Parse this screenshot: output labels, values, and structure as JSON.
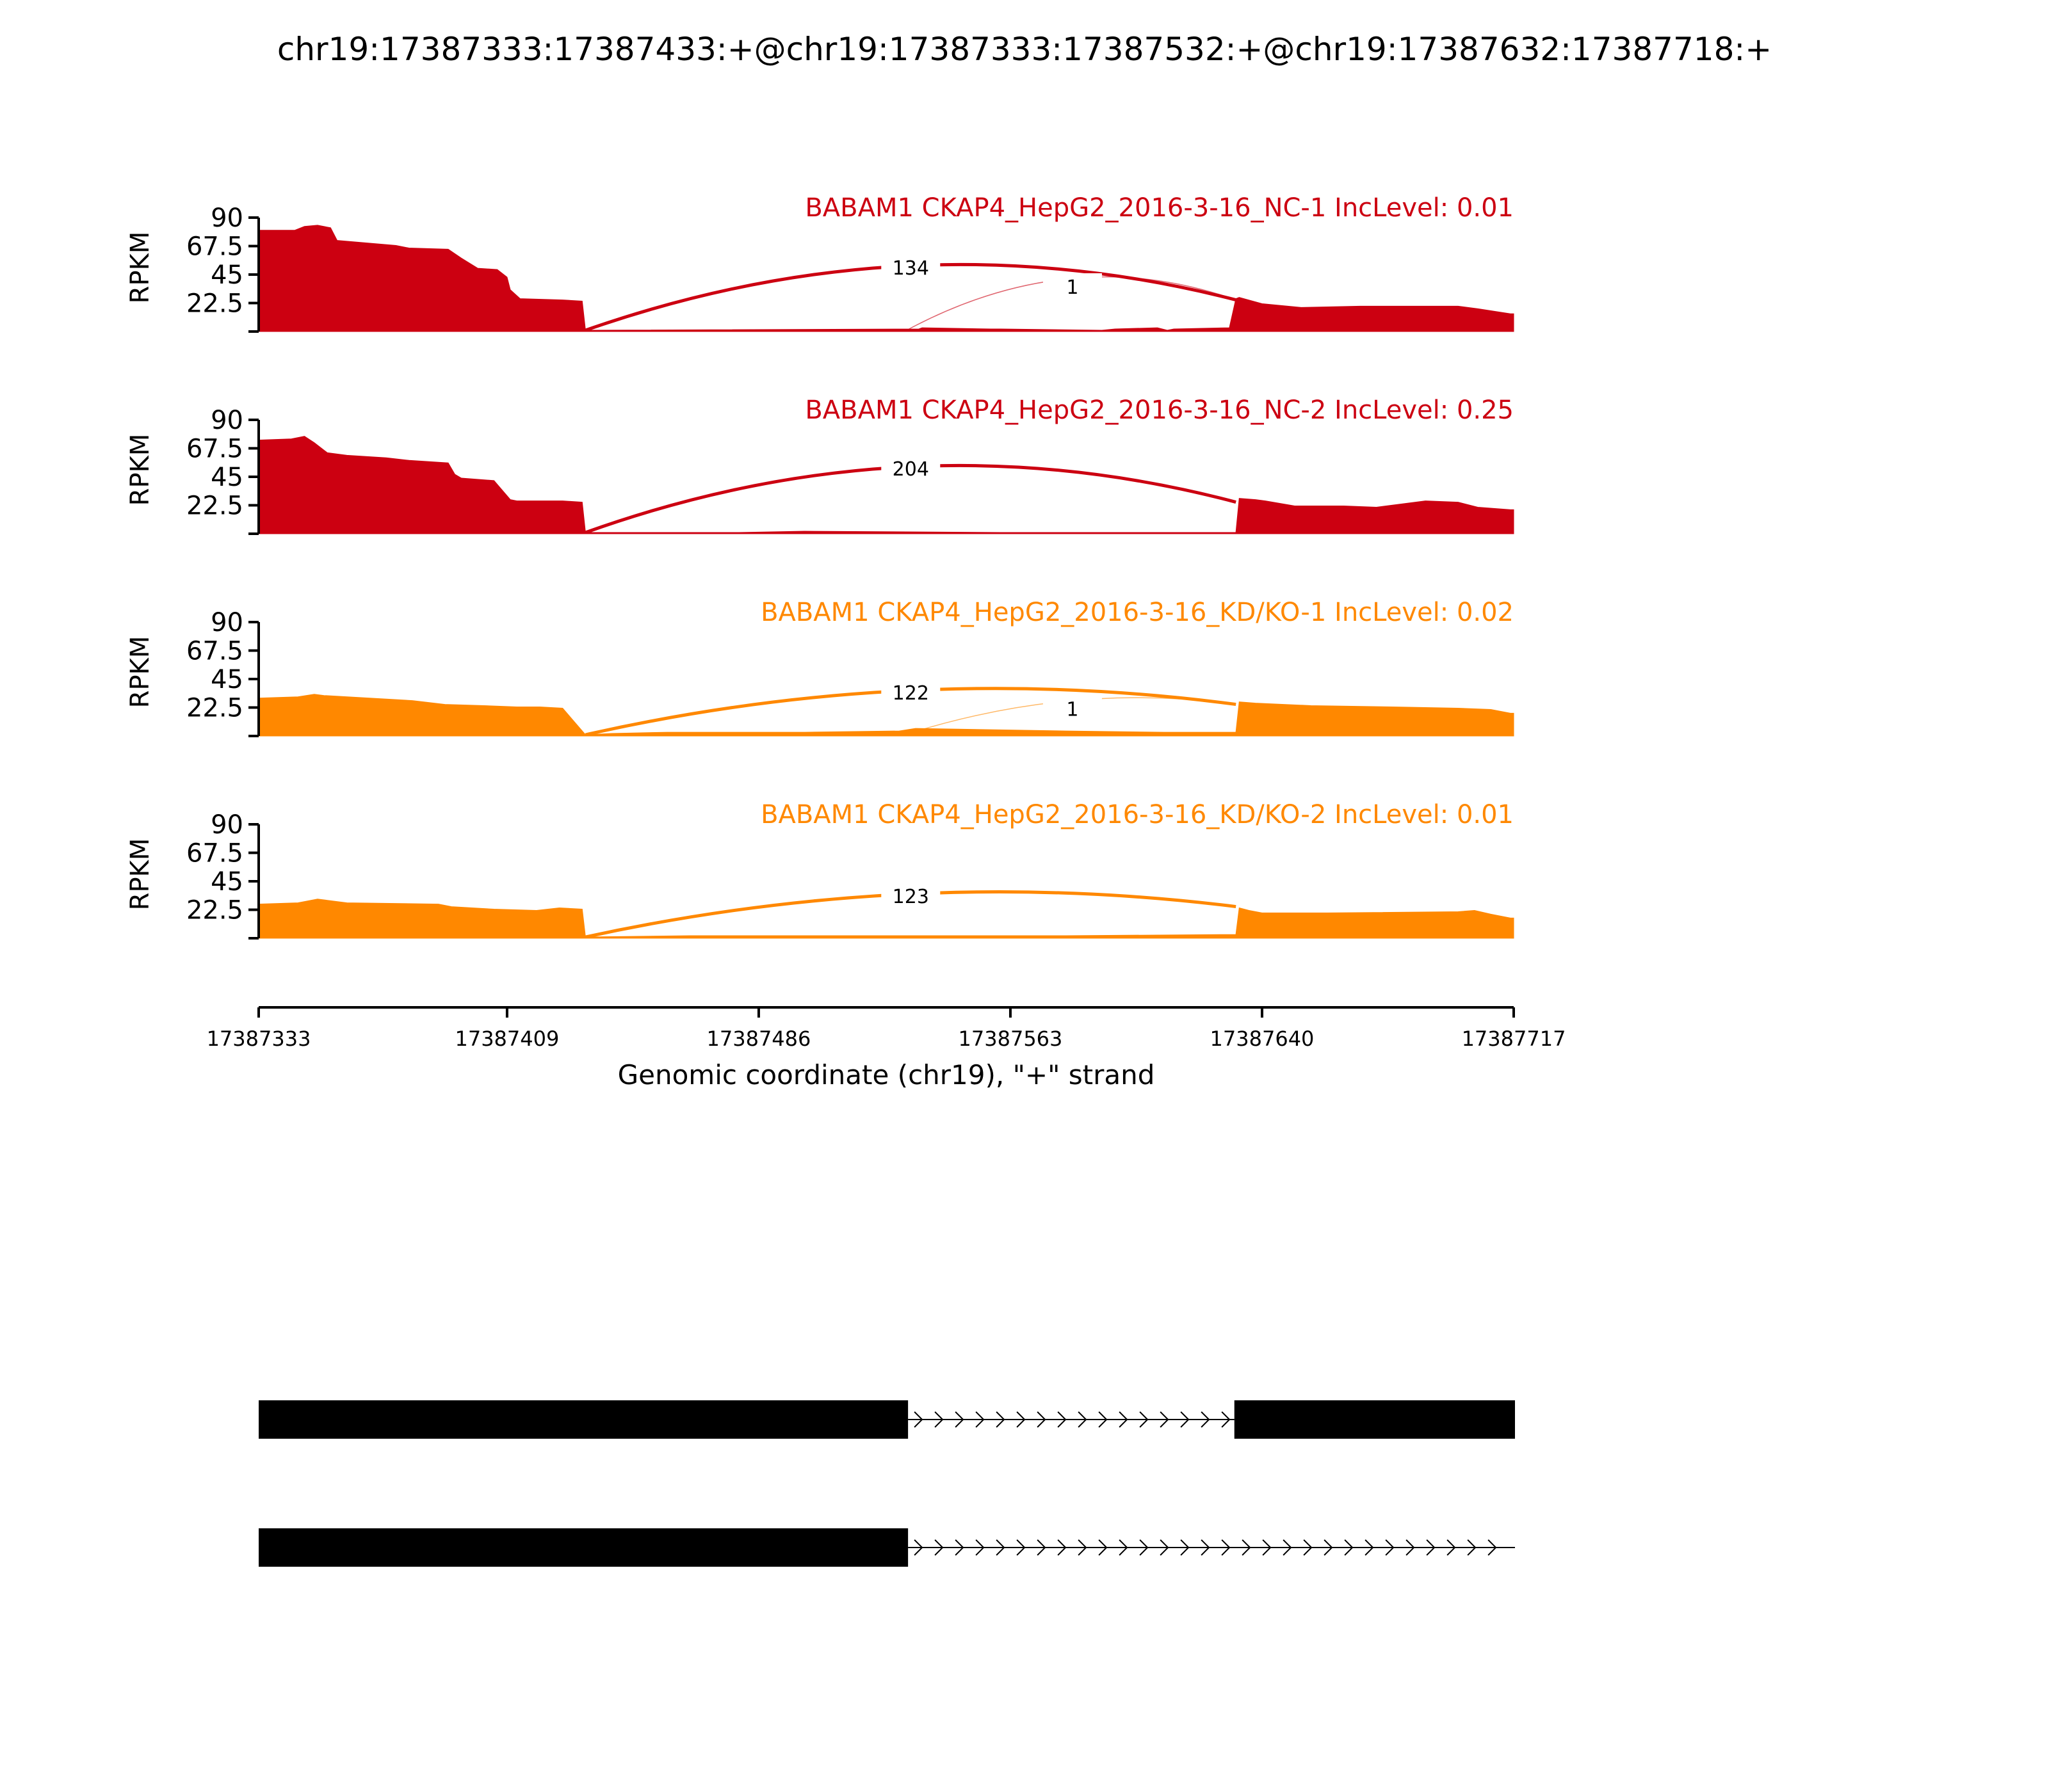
{
  "title": "chr19:17387333:17387433:+@chr19:17387333:17387532:+@chr19:17387632:17387718:+",
  "colors": {
    "nc": "#cc0011",
    "kd": "#ff8800",
    "gene": "#000000"
  },
  "chart_data": {
    "type": "area",
    "title": "chr19:17387333:17387433:+@chr19:17387333:17387532:+@chr19:17387632:17387718:+",
    "xlabel": "Genomic coordinate (chr19), \"+\" strand",
    "ylabel": "RPKM",
    "xlim": [
      17387333,
      17387717
    ],
    "ylim": [
      0,
      90
    ],
    "xticks": [
      "17387333",
      "17387409",
      "17387486",
      "17387563",
      "17387640",
      "17387717"
    ],
    "xtick_values": [
      17387333,
      17387409,
      17387486,
      17387563,
      17387640,
      17387717
    ],
    "yticks": [
      "22.5",
      "45",
      "67.5",
      "90"
    ],
    "ytick_values": [
      22.5,
      45,
      67.5,
      90
    ],
    "series": [
      {
        "name": "BABAM1 CKAP4_HepG2_2016-3-16_NC-1 IncLevel: 0.01",
        "color": "#cc0011",
        "x": [
          17387333,
          17387344,
          17387347,
          17387351,
          17387355,
          17387357,
          17387375,
          17387379,
          17387391,
          17387395,
          17387400,
          17387406,
          17387409,
          17387410,
          17387413,
          17387426,
          17387432,
          17387433,
          17387535,
          17387536,
          17387557,
          17387560,
          17387591,
          17387595,
          17387608,
          17387611,
          17387613,
          17387630,
          17387632,
          17387633,
          17387640,
          17387652,
          17387670,
          17387700,
          17387706,
          17387716,
          17387717
        ],
        "y": [
          80,
          80,
          83,
          84,
          82,
          72,
          68,
          66,
          65,
          58,
          50,
          49,
          43,
          33,
          26,
          25,
          24,
          1,
          2,
          3,
          2,
          2,
          1,
          2,
          3,
          1,
          2,
          3,
          26,
          27,
          22,
          19,
          20,
          20,
          18,
          14,
          14
        ]
      },
      {
        "name": "BABAM1 CKAP4_HepG2_2016-3-16_NC-2 IncLevel: 0.25",
        "color": "#cc0011",
        "x": [
          17387333,
          17387343,
          17387347,
          17387350,
          17387354,
          17387360,
          17387372,
          17387379,
          17387391,
          17387393,
          17387395,
          17387405,
          17387410,
          17387412,
          17387426,
          17387432,
          17387433,
          17387480,
          17387500,
          17387560,
          17387632,
          17387633,
          17387638,
          17387641,
          17387650,
          17387665,
          17387675,
          17387690,
          17387700,
          17387706,
          17387716,
          17387717
        ],
        "y": [
          74,
          75,
          77,
          72,
          64,
          62,
          60,
          58,
          56,
          47,
          44,
          42,
          27,
          26,
          26,
          25,
          1,
          1,
          2,
          1,
          1,
          28,
          27,
          26,
          22,
          22,
          21,
          26,
          25,
          21,
          19,
          19
        ]
      },
      {
        "name": "BABAM1 CKAP4_HepG2_2016-3-16_KD/KO-1 IncLevel: 0.02",
        "color": "#ff8800",
        "x": [
          17387333,
          17387345,
          17387350,
          17387353,
          17387380,
          17387390,
          17387402,
          17387412,
          17387419,
          17387426,
          17387433,
          17387441,
          17387458,
          17387474,
          17387500,
          17387529,
          17387534,
          17387580,
          17387610,
          17387632,
          17387633,
          17387638,
          17387655,
          17387680,
          17387700,
          17387710,
          17387716,
          17387717
        ],
        "y": [
          30,
          31,
          33,
          32,
          28,
          25,
          24,
          23,
          23,
          22,
          1,
          2,
          3,
          3,
          3,
          4,
          6,
          4,
          3,
          3,
          27,
          26,
          24,
          23,
          22,
          21,
          18,
          18
        ]
      },
      {
        "name": "BABAM1 CKAP4_HepG2_2016-3-16_KD/KO-2 IncLevel: 0.01",
        "color": "#ff8800",
        "x": [
          17387333,
          17387345,
          17387351,
          17387354,
          17387360,
          17387388,
          17387392,
          17387405,
          17387418,
          17387425,
          17387432,
          17387433,
          17387465,
          17387480,
          17387525,
          17387540,
          17387580,
          17387632,
          17387633,
          17387636,
          17387640,
          17387660,
          17387700,
          17387705,
          17387710,
          17387716,
          17387717
        ],
        "y": [
          27,
          28,
          31,
          30,
          28,
          27,
          25,
          23,
          22,
          24,
          23,
          1,
          2,
          2,
          2,
          2,
          2,
          3,
          24,
          22,
          20,
          20,
          21,
          22,
          19,
          16,
          16
        ]
      }
    ],
    "junctions": [
      {
        "series": 0,
        "start": 17387433,
        "end": 17387632,
        "count": "134",
        "height": 52,
        "weight": "main"
      },
      {
        "series": 0,
        "start": 17387532,
        "end": 17387632,
        "count": "1",
        "height": 42,
        "weight": "minor"
      },
      {
        "series": 1,
        "start": 17387433,
        "end": 17387632,
        "count": "204",
        "height": 53,
        "weight": "main"
      },
      {
        "series": 2,
        "start": 17387433,
        "end": 17387632,
        "count": "122",
        "height": 36,
        "weight": "main"
      },
      {
        "series": 2,
        "start": 17387532,
        "end": 17387632,
        "count": "1",
        "height": 28,
        "weight": "minor"
      },
      {
        "series": 3,
        "start": 17387433,
        "end": 17387632,
        "count": "123",
        "height": 35,
        "weight": "main"
      }
    ],
    "isoforms": [
      {
        "exons": [
          [
            17387333,
            17387532
          ],
          [
            17387632,
            17387718
          ]
        ],
        "intron": [
          17387532,
          17387632
        ]
      },
      {
        "exons": [
          [
            17387333,
            17387532
          ]
        ],
        "intron": [
          17387532,
          17387718
        ]
      }
    ]
  }
}
